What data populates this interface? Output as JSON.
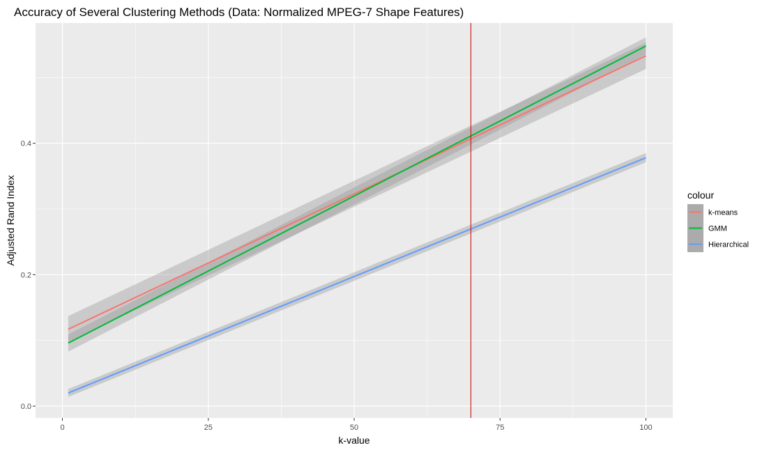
{
  "chart_data": {
    "type": "line",
    "title": "Accuracy of Several Clustering Methods (Data: Normalized MPEG-7 Shape Features)",
    "xlabel": "k-value",
    "ylabel": "Adjusted Rand Index",
    "xlim": [
      -4.6,
      104.6
    ],
    "ylim": [
      -0.018,
      0.583
    ],
    "x_ticks": [
      0,
      25,
      50,
      75,
      100
    ],
    "x_tick_labels": [
      "0",
      "25",
      "50",
      "75",
      "100"
    ],
    "y_ticks": [
      0.0,
      0.2,
      0.4
    ],
    "y_tick_labels": [
      "0.0",
      "0.2",
      "0.4"
    ],
    "grid": true,
    "legend": {
      "title": "colour",
      "position": "right"
    },
    "series": [
      {
        "name": "k-means",
        "color": "#F8766D",
        "x": [
          1,
          100
        ],
        "y": [
          0.117,
          0.533
        ],
        "ci_low": [
          0.098,
          0.513
        ],
        "ci_high": [
          0.137,
          0.553
        ]
      },
      {
        "name": "GMM",
        "color": "#00BA38",
        "x": [
          1,
          100
        ],
        "y": [
          0.096,
          0.548
        ],
        "ci_low": [
          0.083,
          0.535
        ],
        "ci_high": [
          0.109,
          0.561
        ]
      },
      {
        "name": "Hierarchical",
        "color": "#619CFF",
        "x": [
          1,
          100
        ],
        "y": [
          0.02,
          0.378
        ],
        "ci_low": [
          0.014,
          0.371
        ],
        "ci_high": [
          0.026,
          0.385
        ]
      }
    ],
    "vline": {
      "x": 70,
      "color": "#CC0000"
    }
  }
}
